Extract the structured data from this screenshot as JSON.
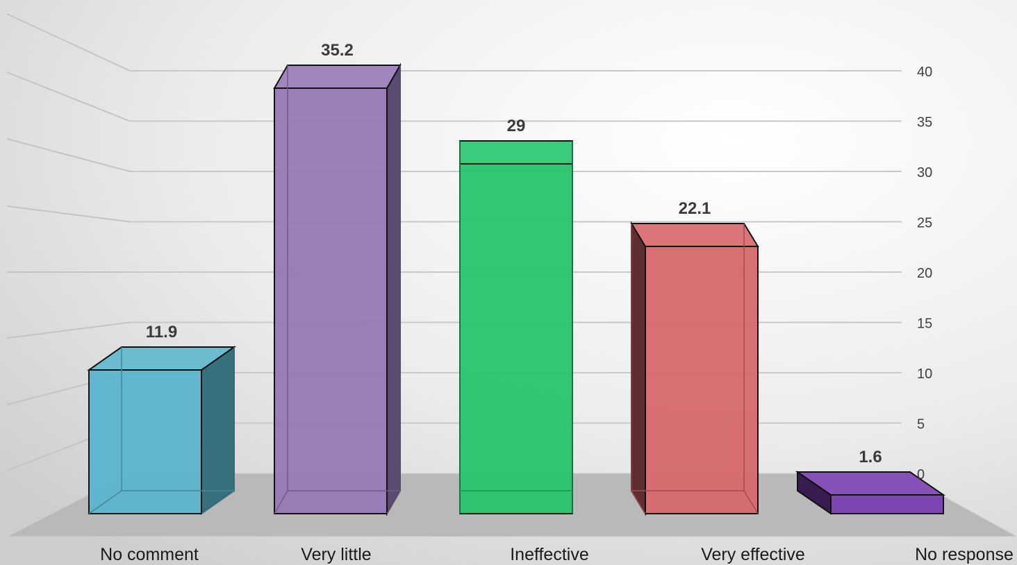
{
  "chart_data": {
    "type": "bar",
    "categories": [
      "No comment",
      "Very little",
      "Ineffective",
      "Very effective",
      "No response"
    ],
    "values": [
      11.9,
      35.2,
      29,
      22.1,
      1.6
    ],
    "value_labels": [
      "11.9",
      "35.2",
      "29",
      "22.1",
      "1.6"
    ],
    "y_ticks": [
      "0",
      "5",
      "10",
      "15",
      "20",
      "25",
      "30",
      "35",
      "40"
    ],
    "ylim": [
      0,
      40
    ],
    "grid": true,
    "style": "3d-perspective",
    "colors": [
      "#5bb4cc",
      "#9479b4",
      "#26c46e",
      "#d6676b",
      "#7a3fb0"
    ]
  }
}
